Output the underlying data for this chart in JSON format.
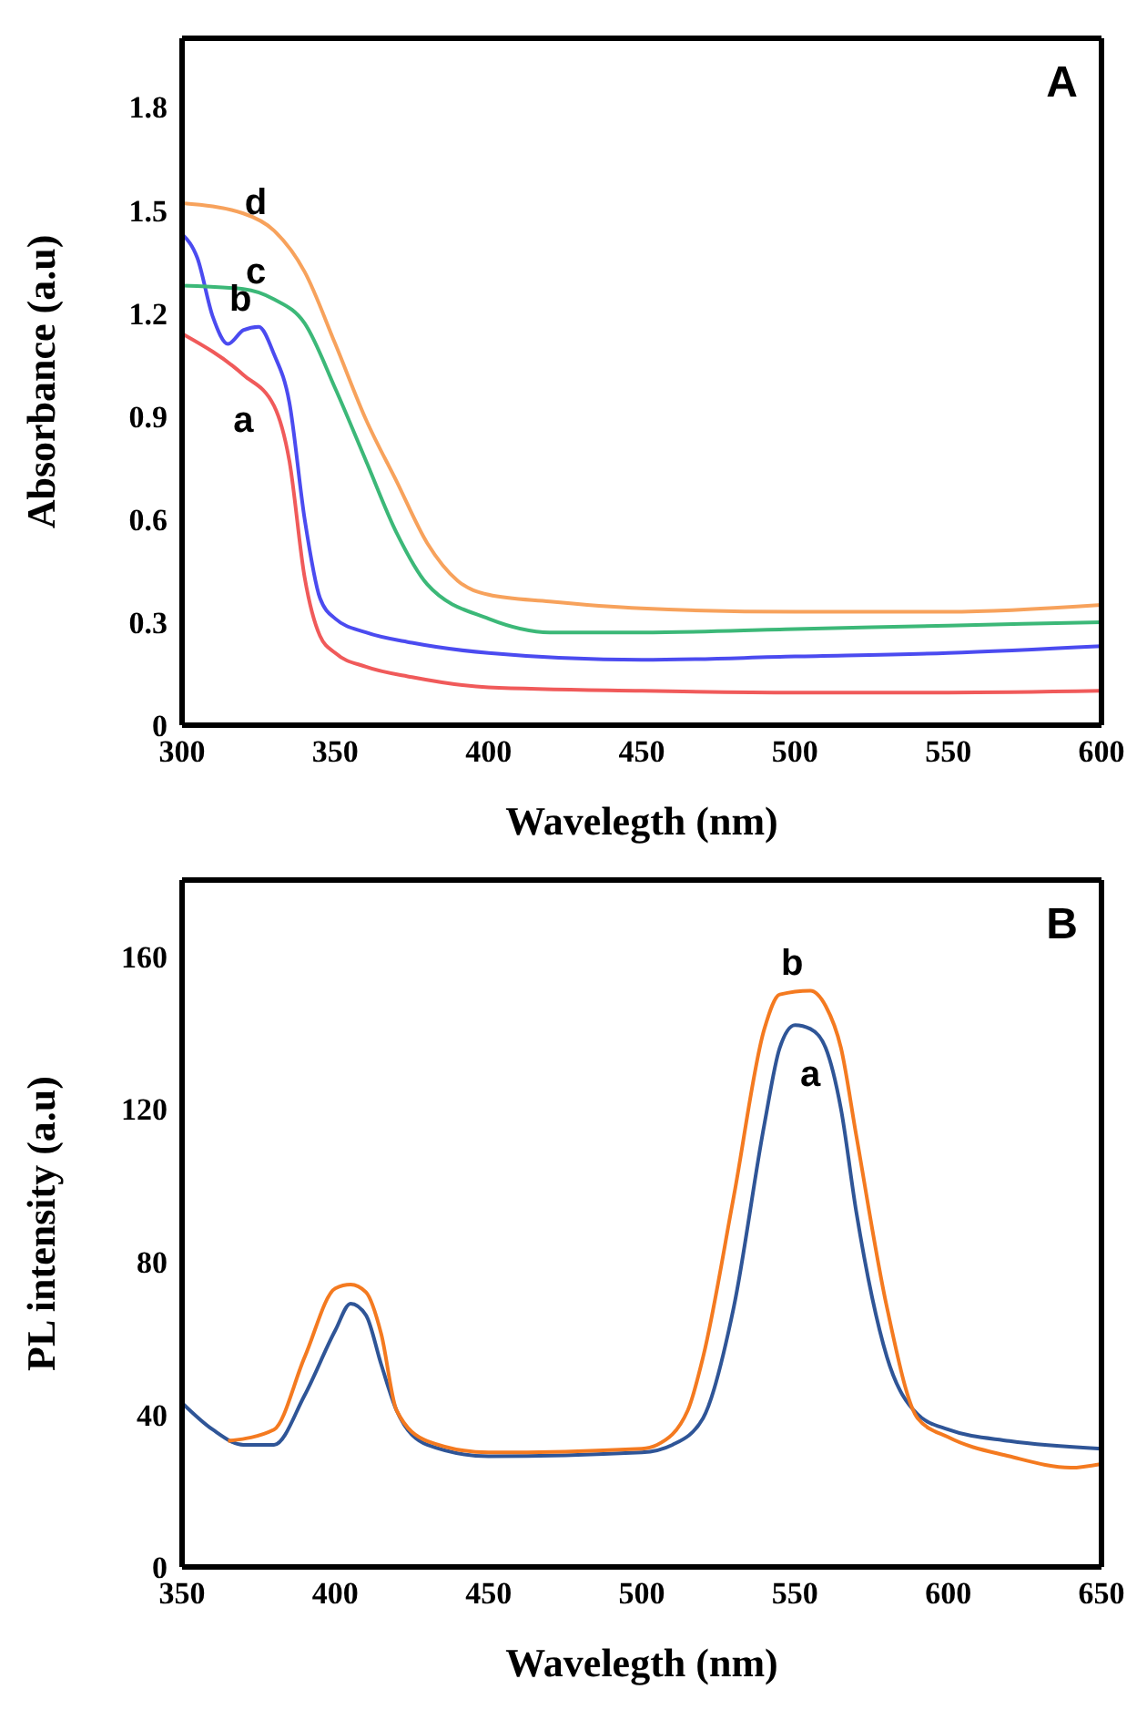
{
  "chart_data": [
    {
      "type": "line",
      "xlabel": "Wavelegth (nm)",
      "ylabel": "Absorbance (a.u)",
      "xlim": [
        300,
        600
      ],
      "xticks": [
        300,
        350,
        400,
        450,
        500,
        550,
        600
      ],
      "ylim": [
        0,
        2
      ],
      "yticks": [
        0,
        0.3,
        0.6,
        0.9,
        1.2,
        1.5,
        1.8
      ],
      "marker": "none",
      "line_style": "solid",
      "annotations": [
        "A",
        {
          "text": "a",
          "x": 320,
          "y": 1.02
        },
        {
          "text": "b",
          "x": 325,
          "y": 1.16
        },
        {
          "text": "c",
          "x": 330,
          "y": 1.24
        },
        {
          "text": "d",
          "x": 330,
          "y": 1.44
        }
      ],
      "series": [
        {
          "color": "#f05a5a",
          "x": [
            300,
            320,
            330,
            335,
            340,
            345,
            350,
            360,
            375,
            400,
            450,
            500,
            550,
            600
          ],
          "values": [
            1.14,
            1.02,
            0.93,
            0.77,
            0.43,
            0.26,
            0.21,
            0.17,
            0.14,
            0.11,
            0.1,
            0.095,
            0.095,
            0.1
          ]
        },
        {
          "color": "#4b4bf0",
          "x": [
            300,
            305,
            310,
            315,
            320,
            325,
            330,
            335,
            340,
            345,
            350,
            360,
            375,
            400,
            450,
            500,
            550,
            600
          ],
          "values": [
            1.43,
            1.36,
            1.19,
            1.11,
            1.15,
            1.16,
            1.08,
            0.94,
            0.6,
            0.37,
            0.31,
            0.27,
            0.24,
            0.21,
            0.19,
            0.2,
            0.21,
            0.23
          ]
        },
        {
          "color": "#3cb878",
          "x": [
            300,
            320,
            330,
            340,
            350,
            360,
            370,
            380,
            400,
            420,
            450,
            500,
            550,
            600
          ],
          "values": [
            1.28,
            1.27,
            1.24,
            1.17,
            0.98,
            0.77,
            0.56,
            0.41,
            0.31,
            0.27,
            0.27,
            0.28,
            0.29,
            0.3
          ]
        },
        {
          "color": "#f7a25c",
          "x": [
            300,
            320,
            330,
            340,
            350,
            360,
            370,
            380,
            390,
            400,
            420,
            450,
            500,
            550,
            600
          ],
          "values": [
            1.52,
            1.49,
            1.44,
            1.32,
            1.11,
            0.89,
            0.71,
            0.53,
            0.42,
            0.38,
            0.36,
            0.34,
            0.33,
            0.33,
            0.35
          ]
        }
      ]
    },
    {
      "type": "line",
      "xlabel": "Wavelegth (nm)",
      "ylabel": "PL intensity (a.u)",
      "xlim": [
        350,
        650
      ],
      "xticks": [
        350,
        400,
        450,
        500,
        550,
        600,
        650
      ],
      "ylim": [
        0,
        180
      ],
      "yticks": [
        0,
        40,
        80,
        120,
        160
      ],
      "marker": "none",
      "line_style": "solid",
      "annotations": [
        "B",
        {
          "text": "a",
          "x": 555,
          "y": 141
        },
        {
          "text": "b",
          "x": 555,
          "y": 151
        }
      ],
      "series": [
        {
          "color": "#2f5597",
          "x": [
            350,
            360,
            370,
            380,
            390,
            400,
            405,
            410,
            415,
            420,
            430,
            450,
            500,
            510,
            520,
            530,
            540,
            545,
            550,
            555,
            560,
            565,
            570,
            580,
            590,
            600,
            620,
            650
          ],
          "values": [
            43,
            36,
            32,
            32,
            45,
            62,
            69,
            66,
            53,
            41,
            32,
            29,
            30,
            32,
            39,
            68,
            116,
            136,
            142,
            141,
            136,
            120,
            93,
            55,
            40,
            36,
            33,
            31
          ]
        },
        {
          "color": "#f47a20",
          "x": [
            365,
            380,
            390,
            400,
            405,
            410,
            415,
            420,
            430,
            450,
            500,
            505,
            515,
            520,
            530,
            540,
            545,
            555,
            560,
            565,
            570,
            580,
            590,
            600,
            620,
            640,
            650
          ],
          "values": [
            33,
            36,
            55,
            73,
            74,
            72,
            61,
            41,
            33,
            30,
            31,
            32,
            41,
            55,
            97,
            141,
            150,
            151,
            147,
            136,
            113,
            68,
            39,
            34,
            29,
            26,
            27
          ]
        }
      ]
    }
  ]
}
